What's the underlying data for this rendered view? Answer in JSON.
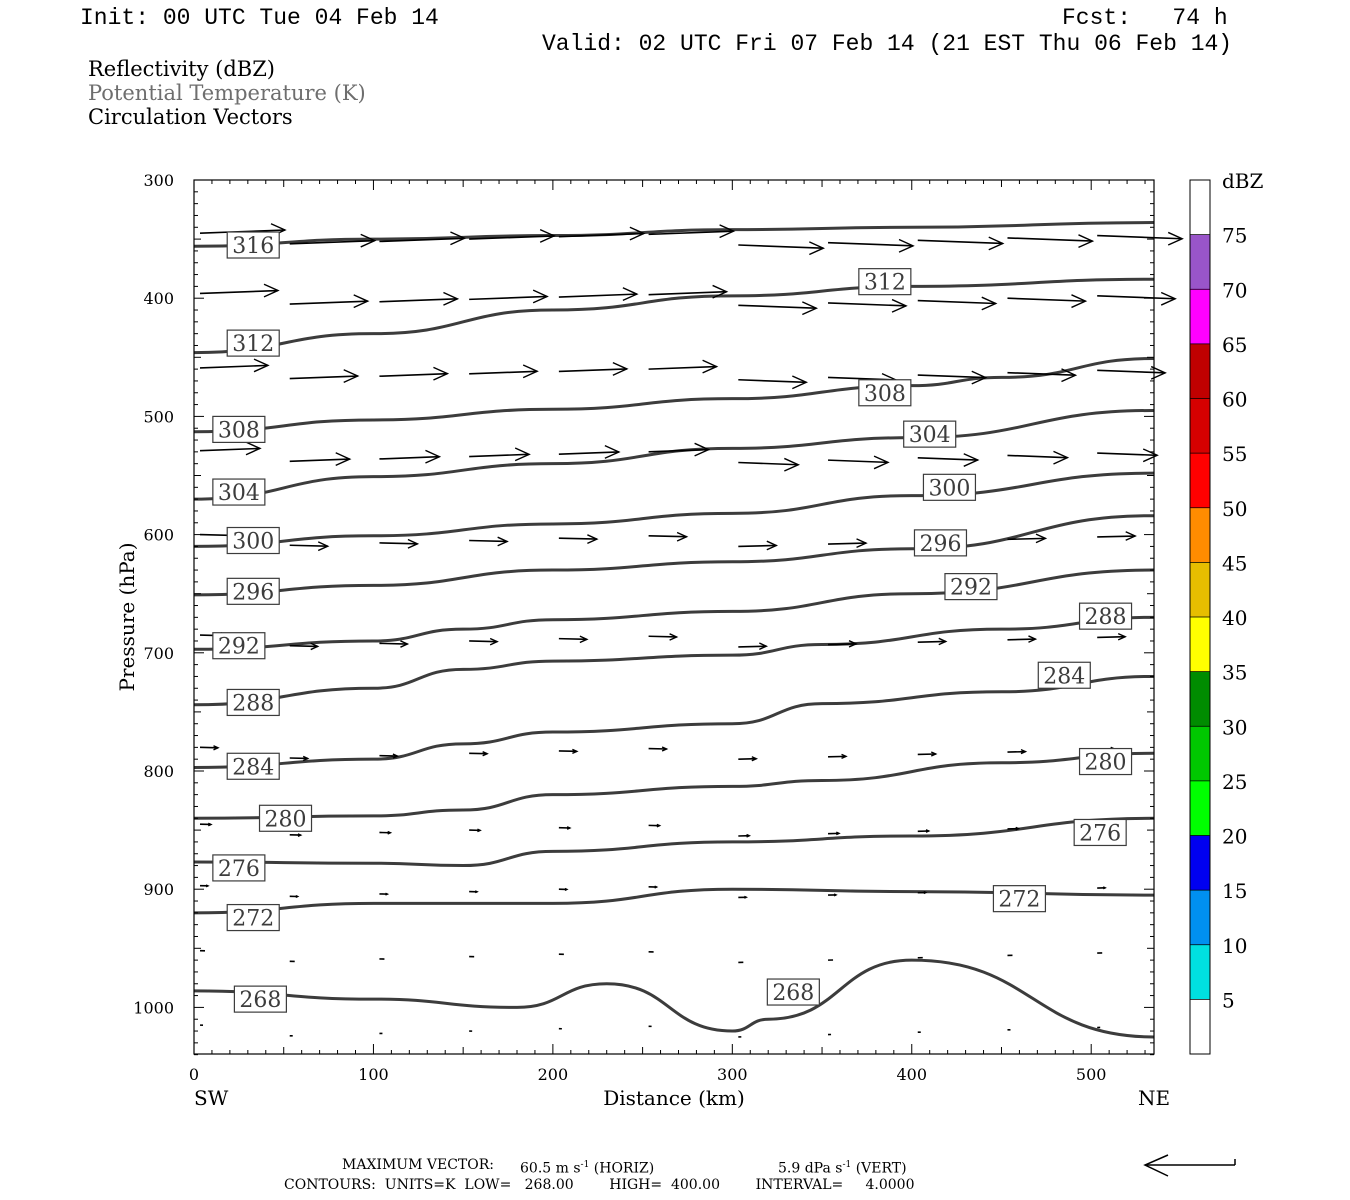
{
  "header": {
    "init": "Init: 00 UTC Tue 04 Feb 14",
    "fcst": "Fcst:   74 h",
    "valid": "Valid: 02 UTC Fri 07 Feb 14 (21 EST Thu 06 Feb 14)",
    "fields": [
      "Reflectivity (dBZ)",
      "Potential Temperature (K)",
      "Circulation Vectors"
    ]
  },
  "footer": {
    "max_vector_label": "MAXIMUM VECTOR:",
    "max_vector_horiz": "60.5 m s",
    "horiz_tag": "(HORIZ)",
    "max_vector_vert": "5.9 dPa s",
    "vert_tag": "(VERT)",
    "exp": "-1",
    "contours": "CONTOURS:  UNITS=K  LOW=   268.00        HIGH=  400.00        INTERVAL=     4.0000"
  },
  "colorbar": {
    "title": "dBZ",
    "levels": [
      "5",
      "10",
      "15",
      "20",
      "25",
      "30",
      "35",
      "40",
      "45",
      "50",
      "55",
      "60",
      "65",
      "70",
      "75"
    ],
    "colors": [
      "#ffffff",
      "#00e0e0",
      "#0090f0",
      "#0000f0",
      "#00ff00",
      "#00c800",
      "#008c00",
      "#ffff00",
      "#e6be00",
      "#ff8c00",
      "#ff0000",
      "#d60000",
      "#c00000",
      "#ff00ff",
      "#9955c9",
      "#ffffff"
    ]
  },
  "chart_data": {
    "type": "contour",
    "xlabel": "Distance (km)",
    "ylabel": "Pressure (hPa)",
    "xlim": [
      0,
      535
    ],
    "ylim": [
      1040,
      300
    ],
    "x_ticks": [
      "0",
      "100",
      "200",
      "300",
      "400",
      "500"
    ],
    "y_ticks": [
      "300",
      "400",
      "500",
      "600",
      "700",
      "800",
      "900",
      "1000"
    ],
    "x_end_labels": {
      "left": "SW",
      "right": "NE"
    },
    "contour_units": "K",
    "contours": [
      {
        "theta": 316,
        "label_pos": [
          33,
          355
        ],
        "points": [
          [
            0,
            356
          ],
          [
            100,
            350
          ],
          [
            200,
            347
          ],
          [
            300,
            342
          ],
          [
            400,
            340
          ],
          [
            535,
            336
          ]
        ]
      },
      {
        "theta": 312,
        "label_pos": [
          33,
          438
        ],
        "label2_pos": [
          385,
          386
        ],
        "points": [
          [
            0,
            446
          ],
          [
            100,
            430
          ],
          [
            200,
            410
          ],
          [
            300,
            398
          ],
          [
            400,
            390
          ],
          [
            535,
            384
          ]
        ]
      },
      {
        "theta": 308,
        "label_pos": [
          25,
          511
        ],
        "label2_pos": [
          385,
          480
        ],
        "points": [
          [
            0,
            513
          ],
          [
            100,
            503
          ],
          [
            200,
            494
          ],
          [
            300,
            485
          ],
          [
            400,
            474
          ],
          [
            450,
            467
          ],
          [
            535,
            451
          ]
        ]
      },
      {
        "theta": 304,
        "label_pos": [
          25,
          564
        ],
        "label2_pos": [
          410,
          515
        ],
        "points": [
          [
            0,
            570
          ],
          [
            100,
            551
          ],
          [
            200,
            540
          ],
          [
            300,
            527
          ],
          [
            400,
            518
          ],
          [
            535,
            495
          ]
        ]
      },
      {
        "theta": 300,
        "label_pos": [
          33,
          605
        ],
        "label2_pos": [
          421,
          560
        ],
        "points": [
          [
            0,
            610
          ],
          [
            100,
            601
          ],
          [
            200,
            591
          ],
          [
            300,
            582
          ],
          [
            400,
            567
          ],
          [
            535,
            548
          ]
        ]
      },
      {
        "theta": 296,
        "label_pos": [
          33,
          648
        ],
        "label2_pos": [
          416,
          607
        ],
        "points": [
          [
            0,
            651
          ],
          [
            100,
            643
          ],
          [
            200,
            630
          ],
          [
            300,
            623
          ],
          [
            400,
            612
          ],
          [
            535,
            584
          ]
        ]
      },
      {
        "theta": 292,
        "label_pos": [
          25,
          694
        ],
        "label2_pos": [
          433,
          644
        ],
        "points": [
          [
            0,
            697
          ],
          [
            100,
            690
          ],
          [
            150,
            680
          ],
          [
            200,
            672
          ],
          [
            300,
            665
          ],
          [
            400,
            650
          ],
          [
            535,
            630
          ]
        ]
      },
      {
        "theta": 288,
        "label_pos": [
          33,
          742
        ],
        "label2_pos": [
          508,
          669
        ],
        "points": [
          [
            0,
            744
          ],
          [
            100,
            730
          ],
          [
            150,
            714
          ],
          [
            200,
            707
          ],
          [
            300,
            702
          ],
          [
            350,
            693
          ],
          [
            450,
            680
          ],
          [
            535,
            670
          ]
        ]
      },
      {
        "theta": 284,
        "label_pos": [
          33,
          796
        ],
        "label2_pos": [
          485,
          719
        ],
        "points": [
          [
            0,
            797
          ],
          [
            100,
            790
          ],
          [
            150,
            777
          ],
          [
            200,
            767
          ],
          [
            300,
            760
          ],
          [
            350,
            743
          ],
          [
            450,
            733
          ],
          [
            535,
            720
          ]
        ]
      },
      {
        "theta": 280,
        "label_pos": [
          51,
          840
        ],
        "label2_pos": [
          508,
          792
        ],
        "points": [
          [
            0,
            840
          ],
          [
            100,
            838
          ],
          [
            150,
            833
          ],
          [
            200,
            820
          ],
          [
            300,
            813
          ],
          [
            350,
            808
          ],
          [
            450,
            793
          ],
          [
            535,
            785
          ]
        ]
      },
      {
        "theta": 276,
        "label_pos": [
          25,
          882
        ],
        "label2_pos": [
          505,
          852
        ],
        "points": [
          [
            0,
            877
          ],
          [
            100,
            878
          ],
          [
            150,
            880
          ],
          [
            200,
            868
          ],
          [
            300,
            860
          ],
          [
            400,
            855
          ],
          [
            535,
            840
          ]
        ]
      },
      {
        "theta": 272,
        "label_pos": [
          33,
          924
        ],
        "label2_pos": [
          460,
          908
        ],
        "points": [
          [
            0,
            920
          ],
          [
            100,
            912
          ],
          [
            200,
            912
          ],
          [
            300,
            900
          ],
          [
            400,
            902
          ],
          [
            535,
            905
          ]
        ]
      },
      {
        "theta": 268,
        "label_pos": [
          37,
          993
        ],
        "label2_pos": [
          334,
          987
        ],
        "points": [
          [
            0,
            986
          ],
          [
            100,
            993
          ],
          [
            180,
            1000
          ],
          [
            230,
            980
          ],
          [
            300,
            1020
          ],
          [
            320,
            1010
          ],
          [
            400,
            960
          ],
          [
            535,
            1025
          ]
        ]
      }
    ],
    "vectors_note": "circulation vectors, mainly SW to NE flow, strongest near 300-500 hPa"
  }
}
